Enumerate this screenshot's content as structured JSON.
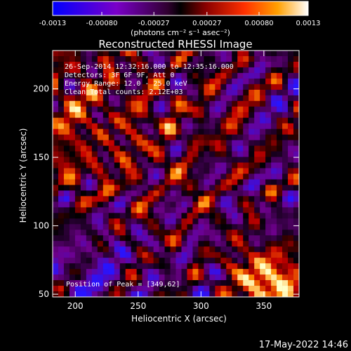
{
  "chart_data": {
    "type": "heatmap",
    "title": "Reconstructed RHESSI Image",
    "xlabel": "Heliocentric X (arcsec)",
    "ylabel": "Heliocentric Y (arcsec)",
    "xlim": [
      182,
      378
    ],
    "ylim": [
      48,
      228
    ],
    "x_ticks": [
      200,
      250,
      300,
      350
    ],
    "y_ticks": [
      50,
      100,
      150,
      200
    ],
    "colorbar": {
      "min": -0.0013,
      "max": 0.0013,
      "tick_labels": [
        "-0.0013",
        "-0.00080",
        "-0.00027",
        "0.00027",
        "0.00080",
        "0.0013"
      ],
      "tick_values": [
        -0.0013,
        -0.0008,
        -0.00027,
        0.00027,
        0.0008,
        0.0013
      ],
      "unit_label": "(photons cm⁻² s⁻¹ asec⁻²)"
    },
    "annotations": [
      "26-Sep-2014 12:32:16.000 to 12:35:16.000",
      "Detectors: 3F 6F 9F, Att 0",
      "Energy Range: 12.0 - 25.0 keV",
      "Clean    Total counts: 2.12E+03"
    ],
    "peak_label": "Position of Peak = [349,62]",
    "peak": [
      349,
      62
    ],
    "grid": false
  },
  "footer": {
    "date": "17-May-2022 14:46"
  }
}
